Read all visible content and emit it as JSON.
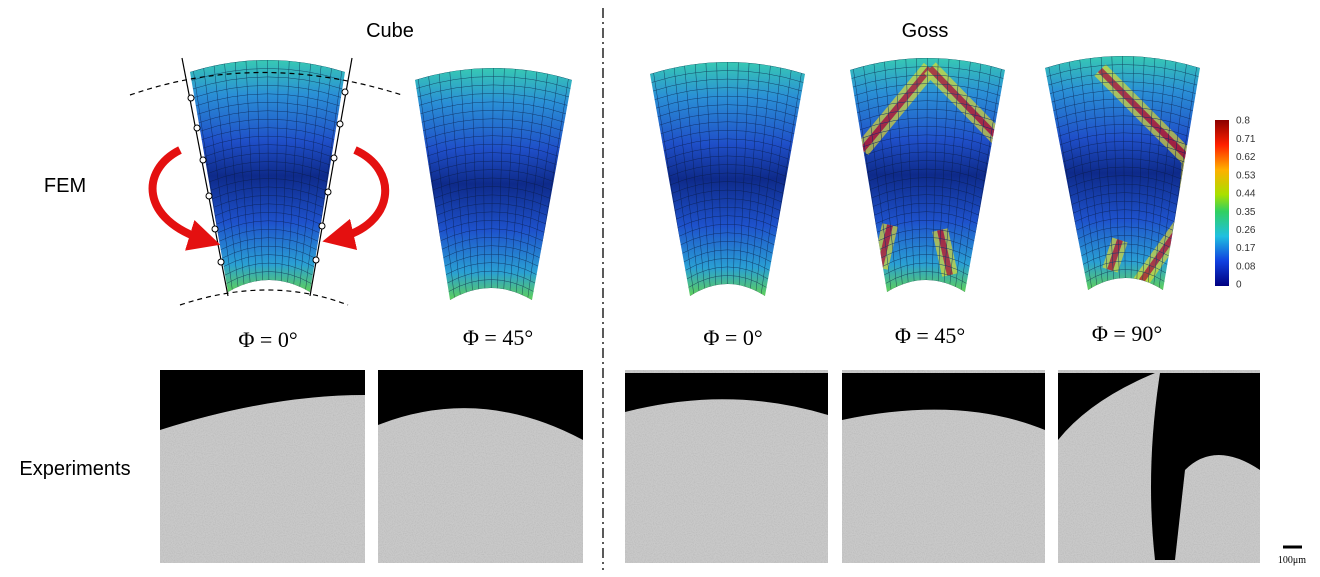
{
  "header": {
    "cube": "Cube",
    "goss": "Goss"
  },
  "rows": {
    "fem": "FEM",
    "experiments": "Experiments"
  },
  "angles": {
    "cube": [
      "Φ = 0°",
      "Φ = 45°"
    ],
    "goss": [
      "Φ = 0°",
      "Φ = 45°",
      "Φ = 90°"
    ]
  },
  "colorbar": {
    "labels": [
      "0.8",
      "0.71",
      "0.62",
      "0.53",
      "0.44",
      "0.35",
      "0.26",
      "0.17",
      "0.08",
      "0"
    ]
  },
  "scale_bar": "100μm"
}
